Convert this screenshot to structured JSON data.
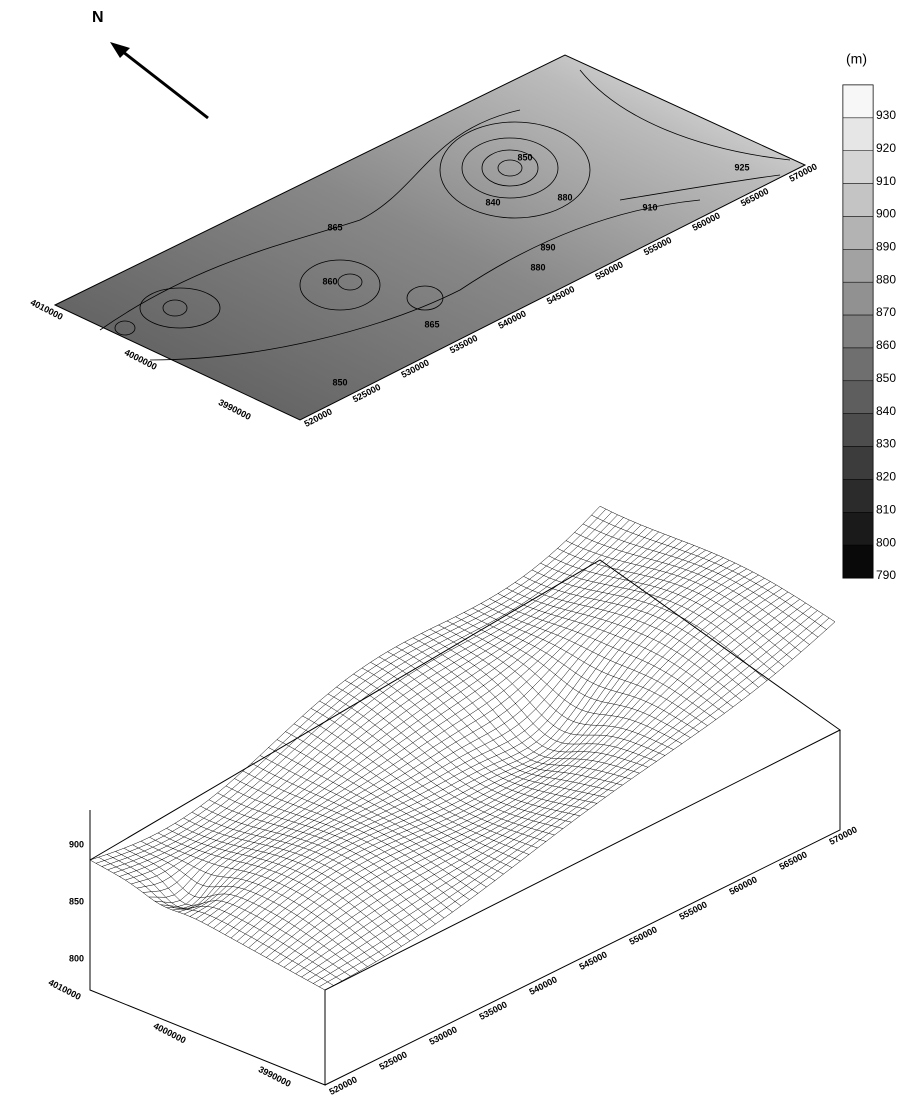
{
  "north_label": "N",
  "top_map": {
    "contour_labels": [
      "865",
      "860",
      "850",
      "865",
      "880",
      "840",
      "890",
      "880",
      "910",
      "925",
      "850"
    ],
    "x_labels": [
      "520000",
      "525000",
      "530000",
      "535000",
      "540000",
      "545000",
      "550000",
      "555000",
      "560000",
      "565000",
      "570000"
    ],
    "y_labels": [
      "4010000",
      "4000000",
      "3990000"
    ]
  },
  "legend": {
    "unit": "(m)",
    "ticks": [
      "930",
      "920",
      "910",
      "900",
      "890",
      "880",
      "870",
      "860",
      "850",
      "840",
      "830",
      "820",
      "810",
      "800",
      "790"
    ]
  },
  "surface": {
    "z_labels": [
      "900",
      "850",
      "800"
    ],
    "x_labels": [
      "520000",
      "525000",
      "530000",
      "535000",
      "540000",
      "545000",
      "550000",
      "555000",
      "560000",
      "565000",
      "570000"
    ],
    "y_labels": [
      "4010000",
      "4000000",
      "3990000"
    ]
  }
}
